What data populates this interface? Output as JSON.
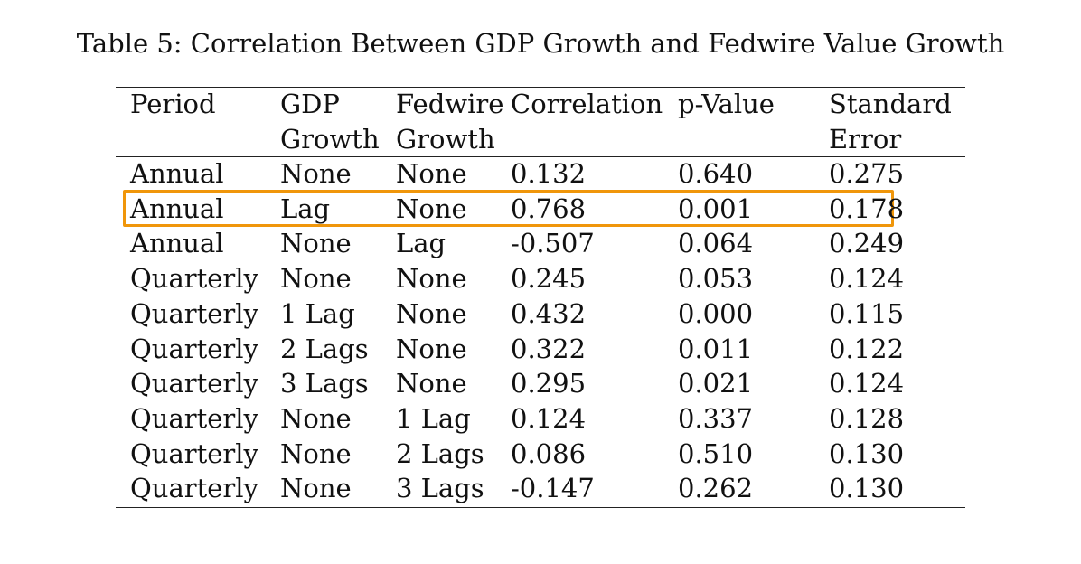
{
  "caption": "Table 5: Correlation Between GDP Growth and Fedwire Value Growth",
  "header": {
    "line1": [
      "Period",
      "GDP",
      "Fedwire",
      "Correlation",
      "p-Value",
      "Standard"
    ],
    "line2": [
      "",
      "Growth",
      "Growth",
      "",
      "",
      "Error"
    ]
  },
  "rows": [
    [
      "Annual",
      "None",
      "None",
      "0.132",
      "0.640",
      "0.275"
    ],
    [
      "Annual",
      "Lag",
      "None",
      "0.768",
      "0.001",
      "0.178"
    ],
    [
      "Annual",
      "None",
      "Lag",
      "-0.507",
      "0.064",
      "0.249"
    ],
    [
      "Quarterly",
      "None",
      "None",
      "0.245",
      "0.053",
      "0.124"
    ],
    [
      "Quarterly",
      "1 Lag",
      "None",
      "0.432",
      "0.000",
      "0.115"
    ],
    [
      "Quarterly",
      "2 Lags",
      "None",
      "0.322",
      "0.011",
      "0.122"
    ],
    [
      "Quarterly",
      "3 Lags",
      "None",
      "0.295",
      "0.021",
      "0.124"
    ],
    [
      "Quarterly",
      "None",
      "1 Lag",
      "0.124",
      "0.337",
      "0.128"
    ],
    [
      "Quarterly",
      "None",
      "2 Lags",
      "0.086",
      "0.510",
      "0.130"
    ],
    [
      "Quarterly",
      "None",
      "3 Lags",
      "-0.147",
      "0.262",
      "0.130"
    ]
  ],
  "highlight": {
    "row_index": 1,
    "color": "#f0960a"
  }
}
